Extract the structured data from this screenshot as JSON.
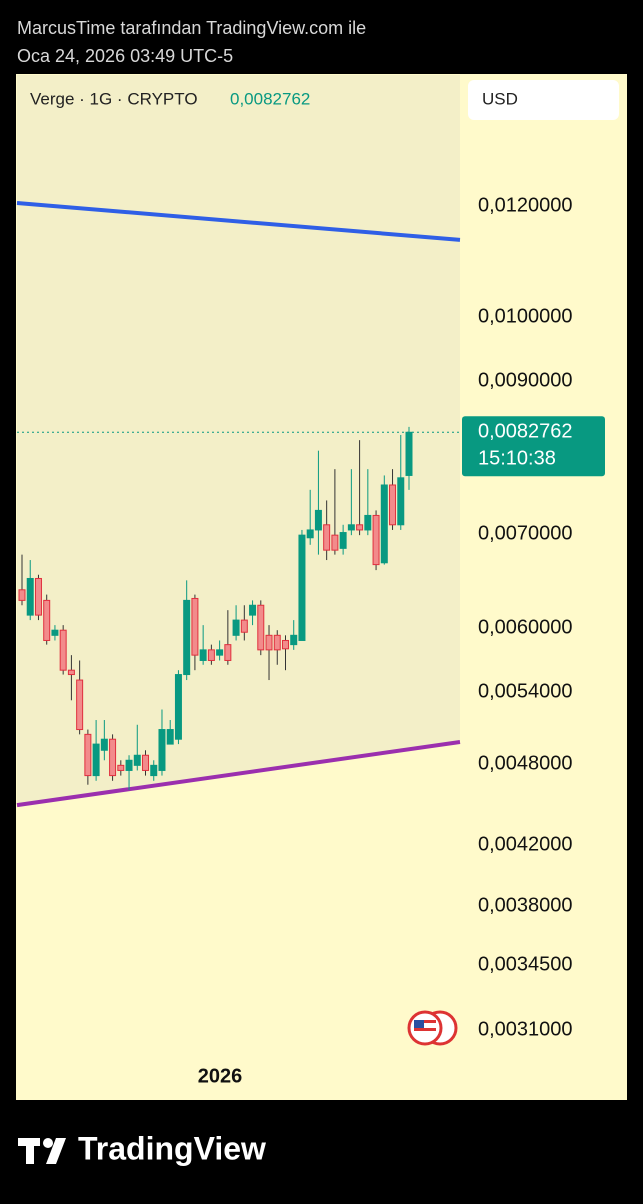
{
  "chart_data": {
    "type": "candlestick",
    "attribution": "MarcusTime tarafından TradingView.com ile",
    "timestamp": "Oca 24, 2026 03:49 UTC-5",
    "symbol": "Verge · 1G · CRYPTO",
    "price_label": "0,0082762",
    "countdown": "15:10:38",
    "currency": "USD",
    "x_label": "2026",
    "brand": "TradingView",
    "log_scale": true,
    "up_color": "#089981",
    "down_color": "#f28b8b",
    "open": [
      0.00639,
      0.00613,
      0.00651,
      0.00628,
      0.00593,
      0.00598,
      0.0056,
      0.00551,
      0.00504,
      0.00471,
      0.00491,
      0.005,
      0.00479,
      0.00475,
      0.00479,
      0.00487,
      0.00471,
      0.00475,
      0.00496,
      0.005,
      0.00556,
      0.0063,
      0.00569,
      0.00579,
      0.00574,
      0.00584,
      0.00593,
      0.00608,
      0.00613,
      0.00623,
      0.00593,
      0.00593,
      0.00588,
      0.00584,
      0.00588,
      0.00696,
      0.00705,
      0.00711,
      0.00699,
      0.00684,
      0.00705,
      0.00711,
      0.00705,
      0.00722,
      0.00668,
      0.00759,
      0.00711,
      0.00771
    ],
    "high": [
      0.00677,
      0.00671,
      0.00655,
      0.00634,
      0.00603,
      0.00603,
      0.00574,
      0.00569,
      0.00508,
      0.00516,
      0.00516,
      0.00504,
      0.00483,
      0.00487,
      0.00512,
      0.00491,
      0.00483,
      0.00525,
      0.00516,
      0.0056,
      0.00649,
      0.00634,
      0.00603,
      0.00584,
      0.00588,
      0.00618,
      0.00623,
      0.00623,
      0.00628,
      0.00628,
      0.00603,
      0.00598,
      0.00593,
      0.00608,
      0.00705,
      0.00753,
      0.00803,
      0.0074,
      0.00779,
      0.00711,
      0.00779,
      0.00817,
      0.00779,
      0.00728,
      0.00771,
      0.00779,
      0.00824,
      0.00835
    ],
    "low": [
      0.00623,
      0.00608,
      0.00608,
      0.00584,
      0.00588,
      0.00556,
      0.00533,
      0.00504,
      0.00464,
      0.00467,
      0.00483,
      0.00467,
      0.00471,
      0.0046,
      0.00475,
      0.00471,
      0.00467,
      0.00471,
      0.00496,
      0.00496,
      0.00551,
      0.0056,
      0.00565,
      0.00565,
      0.00569,
      0.00565,
      0.00588,
      0.00588,
      0.00603,
      0.00574,
      0.00551,
      0.00565,
      0.0056,
      0.00579,
      0.00588,
      0.00688,
      0.00677,
      0.00671,
      0.00677,
      0.00677,
      0.00699,
      0.00699,
      0.00699,
      0.0066,
      0.00666,
      0.00705,
      0.00705,
      0.00753
    ],
    "close": [
      0.00628,
      0.00651,
      0.00613,
      0.00588,
      0.00598,
      0.0056,
      0.00556,
      0.00508,
      0.00471,
      0.00496,
      0.005,
      0.00471,
      0.00475,
      0.00483,
      0.00487,
      0.00475,
      0.00479,
      0.00508,
      0.00508,
      0.00556,
      0.00628,
      0.00574,
      0.00579,
      0.00569,
      0.00579,
      0.00569,
      0.00608,
      0.00596,
      0.00623,
      0.00579,
      0.00579,
      0.00579,
      0.0058,
      0.00593,
      0.00699,
      0.00705,
      0.00728,
      0.00682,
      0.00682,
      0.00702,
      0.00711,
      0.00705,
      0.00722,
      0.00666,
      0.00759,
      0.00711,
      0.00768,
      0.0082762
    ],
    "trendlines": [
      {
        "color": "#2f5fe6",
        "values": [
          0.01206,
          0.01135
        ]
      },
      {
        "color": "#9b2fae",
        "values": [
          0.004487,
          0.004977
        ]
      }
    ],
    "ylim": [
      0.002765,
      0.01488
    ],
    "yticks": [
      {
        "value": 0.012,
        "label": "0,0120000"
      },
      {
        "value": 0.01,
        "label": "0,0100000"
      },
      {
        "value": 0.009,
        "label": "0,0090000"
      },
      {
        "value": 0.007,
        "label": "0,0070000"
      },
      {
        "value": 0.006,
        "label": "0,0060000"
      },
      {
        "value": 0.0054,
        "label": "0,0054000"
      },
      {
        "value": 0.0048,
        "label": "0,0048000"
      },
      {
        "value": 0.0042,
        "label": "0,0042000"
      },
      {
        "value": 0.0038,
        "label": "0,0038000"
      },
      {
        "value": 0.00345,
        "label": "0,0034500"
      },
      {
        "value": 0.0031,
        "label": "0,0031000"
      }
    ]
  }
}
